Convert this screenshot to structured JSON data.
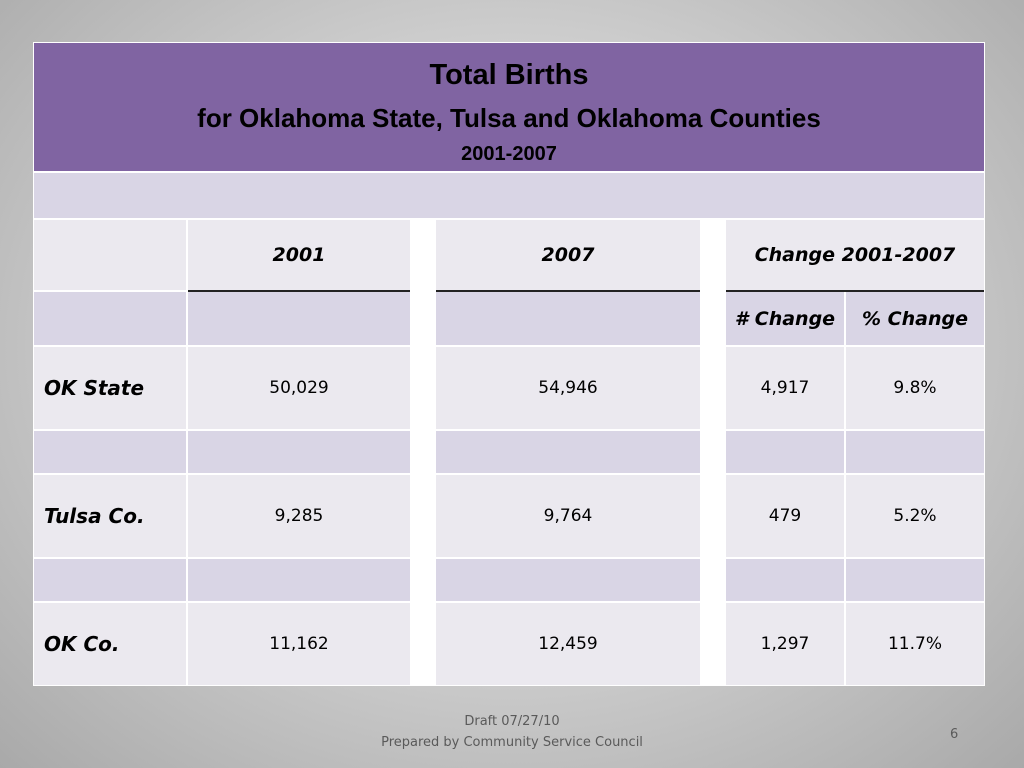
{
  "title": {
    "main": "Total Births",
    "sub": "for Oklahoma State, Tulsa and Oklahoma Counties",
    "years": "2001-2007"
  },
  "headers": {
    "col_2001": "2001",
    "col_2007": "2007",
    "col_change": "Change 2001-2007",
    "num_change": "# Change",
    "pct_change": "% Change"
  },
  "rows": [
    {
      "label": "OK State",
      "v2001": "50,029",
      "v2007": "54,946",
      "num_change": "4,917",
      "pct_change": "9.8%"
    },
    {
      "label": "Tulsa Co.",
      "v2001": "9,285",
      "v2007": "9,764",
      "num_change": "479",
      "pct_change": "5.2%"
    },
    {
      "label": "OK Co.",
      "v2001": "11,162",
      "v2007": "12,459",
      "num_change": "1,297",
      "pct_change": "11.7%"
    }
  ],
  "footer": {
    "draft": "Draft 07/27/10",
    "prepared_by": "Prepared by Community Service Council",
    "page_number": "6"
  },
  "colors": {
    "title_band": "#8064a2",
    "shaded_band": "#d9d5e5",
    "cell": "#ebe9ef"
  }
}
